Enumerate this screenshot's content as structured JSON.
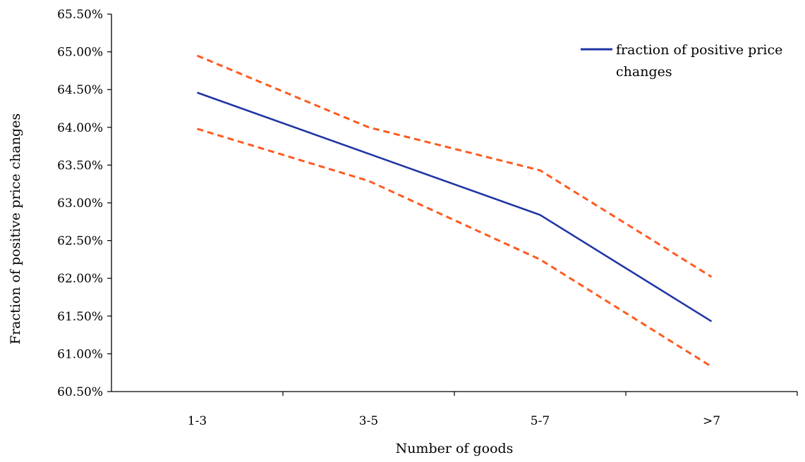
{
  "chart_data": {
    "type": "line",
    "title": "",
    "xlabel": "Number of goods",
    "ylabel": "Fraction of positive price changes",
    "categories": [
      "1-3",
      "3-5",
      "5-7",
      ">7"
    ],
    "y_ticks": [
      "60.50%",
      "61.00%",
      "61.50%",
      "62.00%",
      "62.50%",
      "63.00%",
      "63.50%",
      "64.00%",
      "64.50%",
      "65.00%",
      "65.50%"
    ],
    "ylim": [
      60.5,
      65.5
    ],
    "grid": false,
    "legend_position": "top-right",
    "series": [
      {
        "name": "fraction of positive price changes",
        "values": [
          64.46,
          63.65,
          62.84,
          61.43
        ],
        "color": "#1f35a6",
        "style": "solid",
        "legend_lines": [
          "fraction of positive price",
          "changes"
        ]
      },
      {
        "values": [
          64.95,
          64.0,
          63.43,
          62.02
        ],
        "color": "#ff5a1f",
        "style": "dashed"
      },
      {
        "values": [
          63.98,
          63.29,
          62.25,
          60.83
        ],
        "color": "#ff5a1f",
        "style": "dashed"
      }
    ]
  }
}
